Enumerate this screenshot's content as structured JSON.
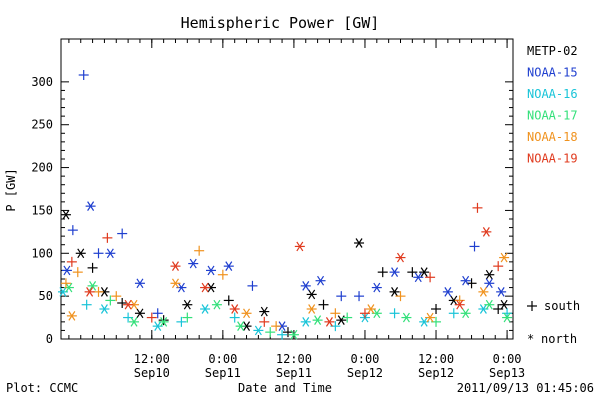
{
  "chart_data": {
    "type": "scatter",
    "title": "Hemispheric Power [GW]",
    "xlabel": "Date and Time",
    "ylabel": "P [GW]",
    "ylim": [
      0,
      350
    ],
    "yticks": [
      0,
      50,
      100,
      150,
      200,
      250,
      300
    ],
    "xlim": [
      "2011-09-09T20:40",
      "2011-09-13T01:00"
    ],
    "xticks": [
      {
        "line1": "12:00",
        "line2": "Sep10"
      },
      {
        "line1": "0:00",
        "line2": "Sep11"
      },
      {
        "line1": "12:00",
        "line2": "Sep11"
      },
      {
        "line1": "0:00",
        "line2": "Sep12"
      },
      {
        "line1": "12:00",
        "line2": "Sep12"
      },
      {
        "line1": "0:00",
        "line2": "Sep13"
      }
    ],
    "xtick_times": [
      "2011-09-10T12:00",
      "2011-09-11T00:00",
      "2011-09-11T12:00",
      "2011-09-12T00:00",
      "2011-09-12T12:00",
      "2011-09-13T00:00"
    ],
    "grid": false,
    "legend_placement": "right",
    "markers": {
      "south": "+",
      "north": "*"
    },
    "marker_legend": {
      "south": "south",
      "north": "north"
    },
    "series": [
      {
        "name": "METP-02",
        "color": "#000000",
        "points": [
          {
            "t": "2011-09-09T21:30",
            "y": 145,
            "m": "north"
          },
          {
            "t": "2011-09-10T00:00",
            "y": 100,
            "m": "north"
          },
          {
            "t": "2011-09-10T02:00",
            "y": 83,
            "m": "south"
          },
          {
            "t": "2011-09-10T04:00",
            "y": 55,
            "m": "north"
          },
          {
            "t": "2011-09-10T07:00",
            "y": 42,
            "m": "south"
          },
          {
            "t": "2011-09-10T10:00",
            "y": 30,
            "m": "north"
          },
          {
            "t": "2011-09-10T14:00",
            "y": 22,
            "m": "south"
          },
          {
            "t": "2011-09-10T18:00",
            "y": 40,
            "m": "north"
          },
          {
            "t": "2011-09-10T22:00",
            "y": 60,
            "m": "north"
          },
          {
            "t": "2011-09-11T01:00",
            "y": 45,
            "m": "south"
          },
          {
            "t": "2011-09-11T04:00",
            "y": 15,
            "m": "north"
          },
          {
            "t": "2011-09-11T07:00",
            "y": 32,
            "m": "north"
          },
          {
            "t": "2011-09-11T11:00",
            "y": 8,
            "m": "south"
          },
          {
            "t": "2011-09-11T15:00",
            "y": 52,
            "m": "north"
          },
          {
            "t": "2011-09-11T17:00",
            "y": 40,
            "m": "south"
          },
          {
            "t": "2011-09-11T20:00",
            "y": 22,
            "m": "north"
          },
          {
            "t": "2011-09-11T23:00",
            "y": 112,
            "m": "north"
          },
          {
            "t": "2011-09-12T03:00",
            "y": 78,
            "m": "south"
          },
          {
            "t": "2011-09-12T05:00",
            "y": 55,
            "m": "north"
          },
          {
            "t": "2011-09-12T08:00",
            "y": 78,
            "m": "south"
          },
          {
            "t": "2011-09-12T10:00",
            "y": 78,
            "m": "north"
          },
          {
            "t": "2011-09-12T12:00",
            "y": 35,
            "m": "south"
          },
          {
            "t": "2011-09-12T15:00",
            "y": 45,
            "m": "north"
          },
          {
            "t": "2011-09-12T18:00",
            "y": 65,
            "m": "south"
          },
          {
            "t": "2011-09-12T21:00",
            "y": 75,
            "m": "north"
          },
          {
            "t": "2011-09-12T22:30",
            "y": 35,
            "m": "south"
          },
          {
            "t": "2011-09-12T23:30",
            "y": 40,
            "m": "north"
          }
        ]
      },
      {
        "name": "NOAA-15",
        "color": "#1f3fcf",
        "points": [
          {
            "t": "2011-09-09T21:40",
            "y": 80,
            "m": "north"
          },
          {
            "t": "2011-09-09T22:40",
            "y": 127,
            "m": "south"
          },
          {
            "t": "2011-09-10T00:30",
            "y": 308,
            "m": "south"
          },
          {
            "t": "2011-09-10T01:40",
            "y": 155,
            "m": "north"
          },
          {
            "t": "2011-09-10T03:00",
            "y": 100,
            "m": "south"
          },
          {
            "t": "2011-09-10T05:00",
            "y": 100,
            "m": "north"
          },
          {
            "t": "2011-09-10T07:00",
            "y": 123,
            "m": "south"
          },
          {
            "t": "2011-09-10T10:00",
            "y": 65,
            "m": "north"
          },
          {
            "t": "2011-09-10T13:00",
            "y": 30,
            "m": "south"
          },
          {
            "t": "2011-09-10T17:00",
            "y": 60,
            "m": "north"
          },
          {
            "t": "2011-09-10T19:00",
            "y": 88,
            "m": "north"
          },
          {
            "t": "2011-09-10T22:00",
            "y": 80,
            "m": "north"
          },
          {
            "t": "2011-09-11T01:00",
            "y": 85,
            "m": "north"
          },
          {
            "t": "2011-09-11T05:00",
            "y": 62,
            "m": "south"
          },
          {
            "t": "2011-09-11T10:00",
            "y": 15,
            "m": "north"
          },
          {
            "t": "2011-09-11T14:00",
            "y": 62,
            "m": "north"
          },
          {
            "t": "2011-09-11T16:30",
            "y": 68,
            "m": "north"
          },
          {
            "t": "2011-09-11T20:00",
            "y": 50,
            "m": "south"
          },
          {
            "t": "2011-09-11T23:00",
            "y": 50,
            "m": "south"
          },
          {
            "t": "2011-09-12T02:00",
            "y": 60,
            "m": "north"
          },
          {
            "t": "2011-09-12T05:00",
            "y": 78,
            "m": "north"
          },
          {
            "t": "2011-09-12T09:00",
            "y": 72,
            "m": "north"
          },
          {
            "t": "2011-09-12T14:00",
            "y": 55,
            "m": "north"
          },
          {
            "t": "2011-09-12T17:00",
            "y": 68,
            "m": "north"
          },
          {
            "t": "2011-09-12T18:30",
            "y": 108,
            "m": "south"
          },
          {
            "t": "2011-09-12T21:00",
            "y": 65,
            "m": "north"
          },
          {
            "t": "2011-09-12T23:00",
            "y": 55,
            "m": "north"
          }
        ]
      },
      {
        "name": "NOAA-16",
        "color": "#19c4d8",
        "points": [
          {
            "t": "2011-09-09T21:00",
            "y": 55,
            "m": "north"
          },
          {
            "t": "2011-09-10T01:00",
            "y": 40,
            "m": "south"
          },
          {
            "t": "2011-09-10T04:00",
            "y": 35,
            "m": "north"
          },
          {
            "t": "2011-09-10T08:00",
            "y": 25,
            "m": "south"
          },
          {
            "t": "2011-09-10T13:00",
            "y": 15,
            "m": "north"
          },
          {
            "t": "2011-09-10T17:00",
            "y": 20,
            "m": "south"
          },
          {
            "t": "2011-09-10T21:00",
            "y": 35,
            "m": "north"
          },
          {
            "t": "2011-09-11T02:00",
            "y": 25,
            "m": "south"
          },
          {
            "t": "2011-09-11T06:00",
            "y": 10,
            "m": "north"
          },
          {
            "t": "2011-09-11T10:00",
            "y": 5,
            "m": "south"
          },
          {
            "t": "2011-09-11T14:00",
            "y": 20,
            "m": "north"
          },
          {
            "t": "2011-09-11T19:00",
            "y": 15,
            "m": "south"
          },
          {
            "t": "2011-09-12T00:00",
            "y": 25,
            "m": "north"
          },
          {
            "t": "2011-09-12T05:00",
            "y": 30,
            "m": "south"
          },
          {
            "t": "2011-09-12T10:00",
            "y": 20,
            "m": "north"
          },
          {
            "t": "2011-09-12T15:00",
            "y": 30,
            "m": "south"
          },
          {
            "t": "2011-09-12T20:00",
            "y": 35,
            "m": "north"
          },
          {
            "t": "2011-09-13T00:00",
            "y": 30,
            "m": "south"
          }
        ]
      },
      {
        "name": "NOAA-17",
        "color": "#33e07a",
        "points": [
          {
            "t": "2011-09-09T22:00",
            "y": 60,
            "m": "north"
          },
          {
            "t": "2011-09-10T02:00",
            "y": 62,
            "m": "north"
          },
          {
            "t": "2011-09-10T05:00",
            "y": 45,
            "m": "south"
          },
          {
            "t": "2011-09-10T09:00",
            "y": 20,
            "m": "north"
          },
          {
            "t": "2011-09-10T14:00",
            "y": 20,
            "m": "north"
          },
          {
            "t": "2011-09-10T18:00",
            "y": 25,
            "m": "south"
          },
          {
            "t": "2011-09-10T23:00",
            "y": 40,
            "m": "north"
          },
          {
            "t": "2011-09-11T03:00",
            "y": 15,
            "m": "north"
          },
          {
            "t": "2011-09-11T08:00",
            "y": 8,
            "m": "south"
          },
          {
            "t": "2011-09-11T12:00",
            "y": 5,
            "m": "north"
          },
          {
            "t": "2011-09-11T16:00",
            "y": 22,
            "m": "north"
          },
          {
            "t": "2011-09-11T21:00",
            "y": 25,
            "m": "south"
          },
          {
            "t": "2011-09-12T02:00",
            "y": 30,
            "m": "north"
          },
          {
            "t": "2011-09-12T07:00",
            "y": 25,
            "m": "north"
          },
          {
            "t": "2011-09-12T12:00",
            "y": 20,
            "m": "south"
          },
          {
            "t": "2011-09-12T17:00",
            "y": 30,
            "m": "north"
          },
          {
            "t": "2011-09-12T21:00",
            "y": 40,
            "m": "north"
          },
          {
            "t": "2011-09-13T00:00",
            "y": 25,
            "m": "north"
          }
        ]
      },
      {
        "name": "NOAA-18",
        "color": "#f0921e",
        "points": [
          {
            "t": "2011-09-09T21:30",
            "y": 65,
            "m": "south"
          },
          {
            "t": "2011-09-09T22:30",
            "y": 27,
            "m": "north"
          },
          {
            "t": "2011-09-09T23:30",
            "y": 78,
            "m": "south"
          },
          {
            "t": "2011-09-10T03:00",
            "y": 55,
            "m": "south"
          },
          {
            "t": "2011-09-10T06:00",
            "y": 50,
            "m": "south"
          },
          {
            "t": "2011-09-10T09:00",
            "y": 40,
            "m": "north"
          },
          {
            "t": "2011-09-10T16:00",
            "y": 65,
            "m": "north"
          },
          {
            "t": "2011-09-10T20:00",
            "y": 103,
            "m": "south"
          },
          {
            "t": "2011-09-11T00:00",
            "y": 75,
            "m": "south"
          },
          {
            "t": "2011-09-11T04:00",
            "y": 30,
            "m": "north"
          },
          {
            "t": "2011-09-11T09:00",
            "y": 15,
            "m": "south"
          },
          {
            "t": "2011-09-11T15:00",
            "y": 35,
            "m": "north"
          },
          {
            "t": "2011-09-11T19:00",
            "y": 30,
            "m": "south"
          },
          {
            "t": "2011-09-12T01:00",
            "y": 35,
            "m": "north"
          },
          {
            "t": "2011-09-12T06:00",
            "y": 50,
            "m": "south"
          },
          {
            "t": "2011-09-12T11:00",
            "y": 25,
            "m": "north"
          },
          {
            "t": "2011-09-12T16:00",
            "y": 45,
            "m": "south"
          },
          {
            "t": "2011-09-12T20:00",
            "y": 55,
            "m": "north"
          },
          {
            "t": "2011-09-12T23:30",
            "y": 95,
            "m": "north"
          }
        ]
      },
      {
        "name": "NOAA-19",
        "color": "#e03a1e",
        "points": [
          {
            "t": "2011-09-09T22:30",
            "y": 90,
            "m": "south"
          },
          {
            "t": "2011-09-10T01:30",
            "y": 55,
            "m": "north"
          },
          {
            "t": "2011-09-10T04:30",
            "y": 118,
            "m": "south"
          },
          {
            "t": "2011-09-10T08:00",
            "y": 40,
            "m": "north"
          },
          {
            "t": "2011-09-10T12:00",
            "y": 25,
            "m": "south"
          },
          {
            "t": "2011-09-10T16:00",
            "y": 85,
            "m": "north"
          },
          {
            "t": "2011-09-10T21:00",
            "y": 60,
            "m": "north"
          },
          {
            "t": "2011-09-11T02:00",
            "y": 35,
            "m": "north"
          },
          {
            "t": "2011-09-11T07:00",
            "y": 20,
            "m": "south"
          },
          {
            "t": "2011-09-11T13:00",
            "y": 108,
            "m": "north"
          },
          {
            "t": "2011-09-11T18:00",
            "y": 20,
            "m": "north"
          },
          {
            "t": "2011-09-12T00:00",
            "y": 30,
            "m": "south"
          },
          {
            "t": "2011-09-12T06:00",
            "y": 95,
            "m": "north"
          },
          {
            "t": "2011-09-12T11:00",
            "y": 72,
            "m": "south"
          },
          {
            "t": "2011-09-12T16:00",
            "y": 40,
            "m": "north"
          },
          {
            "t": "2011-09-12T19:00",
            "y": 153,
            "m": "south"
          },
          {
            "t": "2011-09-12T20:30",
            "y": 125,
            "m": "north"
          },
          {
            "t": "2011-09-12T22:30",
            "y": 85,
            "m": "south"
          }
        ]
      }
    ]
  },
  "footer": {
    "left": "Plot: CCMC",
    "right": "2011/09/13 01:45:06"
  }
}
